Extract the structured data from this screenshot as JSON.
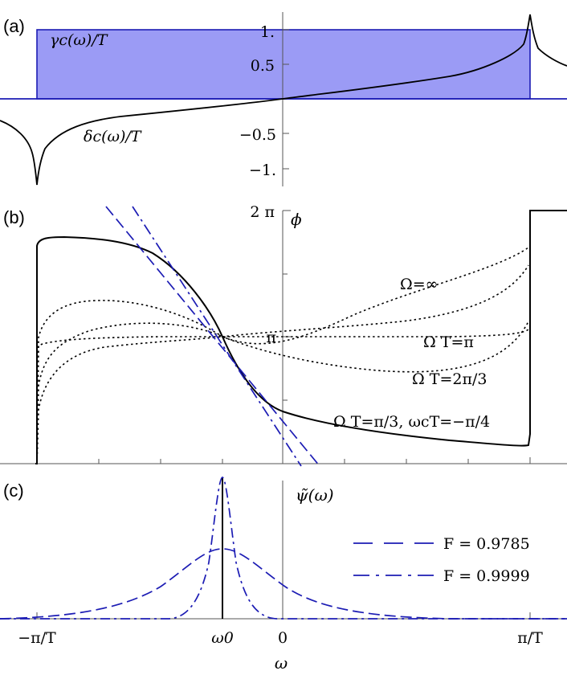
{
  "chart_data": [
    {
      "panel": "(a)",
      "type": "line",
      "x_ticks": {
        "center": "0"
      },
      "y_ticks": [
        "1.",
        "0.5",
        "−0.5",
        "−1."
      ],
      "ylim": [
        -1.2,
        1.2
      ],
      "series": [
        {
          "name": "γc(ω)/T",
          "kind": "filled-step",
          "color": "#1c1cb4",
          "fill": "#9b9bf5",
          "x_range_over_pi_T": [
            -1,
            1
          ],
          "value": 1.0
        },
        {
          "name": "δc(ω)/T",
          "kind": "log-divergent",
          "color": "#000000",
          "points": [
            [
              -1.4,
              -0.32
            ],
            [
              -1.2,
              -0.5
            ],
            [
              -1.05,
              -0.85
            ],
            [
              -1.0,
              -1.15
            ],
            [
              -0.8,
              -0.32
            ],
            [
              -0.5,
              -0.16
            ],
            [
              0,
              0
            ],
            [
              0.5,
              0.16
            ],
            [
              0.8,
              0.32
            ],
            [
              1.0,
              1.15
            ],
            [
              1.05,
              0.85
            ],
            [
              1.2,
              0.5
            ]
          ]
        }
      ],
      "annotations": [
        "γc(ω)/T",
        "δc(ω)/T"
      ]
    },
    {
      "panel": "(b)",
      "type": "line",
      "y_axis_label": "ϕ",
      "y_ticks": [
        "2 π",
        "π"
      ],
      "ylim": [
        0,
        6.283
      ],
      "curves": [
        {
          "label": "Ω=∞",
          "style": "dotted"
        },
        {
          "label": "Ω T=π",
          "style": "dotted"
        },
        {
          "label": "Ω T=2π/3",
          "style": "dotted"
        },
        {
          "label": "Ω T=π/3, ωcT=−π/4",
          "style": "solid"
        }
      ],
      "tangent_lines": [
        {
          "style": "dashed",
          "color": "#1c1cb4"
        },
        {
          "style": "dash-dot",
          "color": "#1c1cb4"
        }
      ]
    },
    {
      "panel": "(c)",
      "type": "line",
      "y_axis_label": "ψ̃(ω)",
      "x_ticks": [
        "−π/T",
        "ω0",
        "0",
        "π/T"
      ],
      "xlabel": "ω",
      "series": [
        {
          "name": "F = 0.9785",
          "style": "long-dash",
          "color": "#1c1cb4",
          "center_over_pi_T": -0.25,
          "width": 0.2,
          "peak": 0.5
        },
        {
          "name": "F = 0.9999",
          "style": "dash-dot",
          "color": "#1c1cb4",
          "center_over_pi_T": -0.25,
          "width": 0.055,
          "peak": 1.0
        }
      ]
    }
  ],
  "labels": {
    "panel_a": "(a)",
    "panel_b": "(b)",
    "panel_c": "(c)",
    "gamma": "γc(ω)/T",
    "delta": "δc(ω)/T",
    "phi": "ϕ",
    "two_pi": "2 π",
    "pi": "π",
    "omega_inf": "Ω=∞",
    "omega_pi": "Ω T=π",
    "omega_2pi3": "Ω T=2π/3",
    "omega_pi3": "Ω T=π/3, ωcT=−π/4",
    "psi": "ψ̃(ω)",
    "f1": "F = 0.9785",
    "f2": "F = 0.9999",
    "x_minus_pi": "−π/T",
    "x_omega0": "ω0",
    "x_zero": "0",
    "x_pi": "π/T",
    "x_axis": "ω",
    "ya_1": "1.",
    "ya_05": "0.5",
    "ya_m05": "−0.5",
    "ya_m1": "−1."
  }
}
